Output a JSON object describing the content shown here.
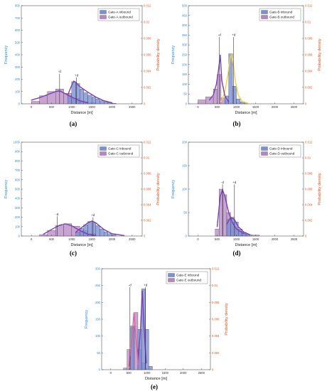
{
  "chart_data": [
    {
      "type": "bar",
      "panel_label": "(a)",
      "xlabel": "Distance [m]",
      "ylabel": "Frequency",
      "y2label": "Probability density",
      "xlim": [
        -250,
        2750
      ],
      "ylim": [
        0,
        800
      ],
      "y2lim": [
        0,
        0.012
      ],
      "xticks": [
        "0",
        "500",
        "1000",
        "1500",
        "2000",
        "2500"
      ],
      "yticks": [
        "0",
        "100",
        "200",
        "300",
        "400",
        "500",
        "600",
        "700",
        "800"
      ],
      "y2ticks": [
        "0",
        "0.002",
        "0.004",
        "0.006",
        "0.008",
        "0.01",
        "0.012"
      ],
      "legend": [
        "Gate-A inbound",
        "Gate-A outbound"
      ],
      "series": [
        {
          "name": "Gate-A inbound",
          "color": "#7b8fd6",
          "bins": [
            [
              900,
              1000,
              65
            ],
            [
              1000,
              1100,
              180
            ],
            [
              1100,
              1200,
              165
            ],
            [
              1200,
              1300,
              120
            ],
            [
              1300,
              1400,
              90
            ],
            [
              1400,
              1500,
              70
            ],
            [
              1500,
              1600,
              55
            ],
            [
              1600,
              1700,
              40
            ],
            [
              1700,
              1800,
              25
            ],
            [
              1800,
              1900,
              15
            ],
            [
              1900,
              2000,
              10
            ],
            [
              2000,
              2100,
              5
            ]
          ]
        },
        {
          "name": "Gate-A outbound",
          "color": "#b685c4",
          "bins": [
            [
              0,
              200,
              20
            ],
            [
              200,
              400,
              65
            ],
            [
              400,
              600,
              100
            ],
            [
              600,
              800,
              120
            ],
            [
              800,
              1000,
              85
            ],
            [
              1000,
              1200,
              45
            ],
            [
              1200,
              1400,
              15
            ],
            [
              1400,
              1600,
              8
            ]
          ]
        }
      ],
      "curves": [
        {
          "color": "#7a3fb5",
          "points": [
            [
              900,
              70
            ],
            [
              1000,
              150
            ],
            [
              1050,
              185
            ],
            [
              1100,
              175
            ],
            [
              1200,
              140
            ],
            [
              1400,
              95
            ],
            [
              1600,
              55
            ],
            [
              1800,
              25
            ],
            [
              2000,
              8
            ]
          ]
        },
        {
          "color": "#7a3fb5",
          "points": [
            [
              0,
              30
            ],
            [
              200,
              50
            ],
            [
              400,
              75
            ],
            [
              600,
              100
            ],
            [
              700,
              105
            ],
            [
              800,
              90
            ],
            [
              1000,
              55
            ],
            [
              1200,
              25
            ],
            [
              1400,
              8
            ]
          ]
        }
      ],
      "markers": [
        {
          "label": "-d",
          "x": 700,
          "top": 245
        },
        {
          "label": "+d",
          "x": 1120,
          "top": 215
        }
      ]
    },
    {
      "type": "bar",
      "panel_label": "(b)",
      "xlabel": "Distance [m]",
      "ylabel": "Frequency",
      "y2label": "Probability density",
      "xlim": [
        -250,
        2750
      ],
      "ylim": [
        0,
        500
      ],
      "y2lim": [
        0,
        0.012
      ],
      "xticks": [
        "0",
        "500",
        "1000",
        "1500",
        "2000",
        "2500"
      ],
      "yticks": [
        "0",
        "50",
        "100",
        "150",
        "200",
        "250",
        "300",
        "350",
        "400",
        "450",
        "500"
      ],
      "y2ticks": [
        "0",
        "0.002",
        "0.004",
        "0.006",
        "0.008",
        "0.01",
        "0.012"
      ],
      "legend": [
        "Gate-B inbound",
        "Gate-B outbound"
      ],
      "series": [
        {
          "name": "Gate-B inbound",
          "color": "#7b8fd6",
          "bins": [
            [
              700,
              800,
              40
            ],
            [
              800,
              900,
              255
            ],
            [
              900,
              1000,
              90
            ],
            [
              1000,
              1100,
              25
            ],
            [
              1100,
              1200,
              10
            ],
            [
              1200,
              1300,
              5
            ]
          ]
        },
        {
          "name": "Gate-B outbound",
          "color": "#b685c4",
          "bins": [
            [
              0,
              200,
              20
            ],
            [
              200,
              400,
              35
            ],
            [
              400,
              500,
              75
            ],
            [
              500,
              600,
              150
            ],
            [
              600,
              700,
              30
            ],
            [
              700,
              800,
              15
            ]
          ]
        }
      ],
      "curves": [
        {
          "color": "#f2d43a",
          "points": [
            [
              600,
              10
            ],
            [
              700,
              60
            ],
            [
              780,
              150
            ],
            [
              830,
              230
            ],
            [
              870,
              250
            ],
            [
              920,
              200
            ],
            [
              980,
              110
            ],
            [
              1050,
              45
            ],
            [
              1150,
              12
            ],
            [
              1300,
              3
            ]
          ]
        },
        {
          "color": "#7a3fb5",
          "points": [
            [
              300,
              20
            ],
            [
              400,
              45
            ],
            [
              480,
              100
            ],
            [
              540,
              180
            ],
            [
              580,
              250
            ],
            [
              620,
              120
            ],
            [
              700,
              40
            ],
            [
              800,
              10
            ]
          ]
        }
      ],
      "markers": [
        {
          "label": "-d",
          "x": 560,
          "top": 340
        },
        {
          "label": "+d",
          "x": 930,
          "top": 340
        }
      ]
    },
    {
      "type": "bar",
      "panel_label": "(c)",
      "xlabel": "Distance [m]",
      "ylabel": "Frequency",
      "y2label": "Probability density",
      "xlim": [
        -250,
        2750
      ],
      "ylim": [
        0,
        1000
      ],
      "y2lim": [
        0,
        0.012
      ],
      "xticks": [
        "0",
        "500",
        "1000",
        "1500",
        "2000",
        "2500"
      ],
      "yticks": [
        "0",
        "100",
        "200",
        "300",
        "400",
        "500",
        "600",
        "700",
        "800",
        "900",
        "1000"
      ],
      "y2ticks": [
        "0",
        "0.002",
        "0.004",
        "0.006",
        "0.008",
        "0.01",
        "0.012"
      ],
      "legend": [
        "Gate-C inbound",
        "Gate-C outbound"
      ],
      "series": [
        {
          "name": "Gate-C inbound",
          "color": "#7b8fd6",
          "bins": [
            [
              1100,
              1200,
              40
            ],
            [
              1200,
              1300,
              80
            ],
            [
              1300,
              1400,
              120
            ],
            [
              1400,
              1500,
              155
            ],
            [
              1500,
              1600,
              145
            ],
            [
              1600,
              1700,
              110
            ],
            [
              1700,
              1800,
              75
            ],
            [
              1800,
              1900,
              45
            ],
            [
              1900,
              2000,
              25
            ],
            [
              2000,
              2100,
              12
            ]
          ]
        },
        {
          "name": "Gate-C outbound",
          "color": "#b685c4",
          "bins": [
            [
              200,
              400,
              15
            ],
            [
              400,
              600,
              60
            ],
            [
              600,
              800,
              110
            ],
            [
              800,
              1000,
              130
            ],
            [
              1000,
              1200,
              105
            ],
            [
              1200,
              1400,
              55
            ],
            [
              1400,
              1600,
              25
            ]
          ]
        }
      ],
      "curves": [
        {
          "color": "#7a3fb5",
          "points": [
            [
              1100,
              40
            ],
            [
              1250,
              90
            ],
            [
              1400,
              140
            ],
            [
              1500,
              160
            ],
            [
              1600,
              140
            ],
            [
              1800,
              70
            ],
            [
              2000,
              25
            ],
            [
              2300,
              5
            ]
          ]
        },
        {
          "color": "#7a3fb5",
          "points": [
            [
              300,
              20
            ],
            [
              500,
              70
            ],
            [
              700,
              115
            ],
            [
              850,
              130
            ],
            [
              1000,
              110
            ],
            [
              1200,
              60
            ],
            [
              1400,
              20
            ],
            [
              1600,
              5
            ]
          ]
        }
      ],
      "markers": [
        {
          "label": "-d",
          "x": 640,
          "top": 210
        },
        {
          "label": "+d",
          "x": 1530,
          "top": 200
        }
      ]
    },
    {
      "type": "bar",
      "panel_label": "(d)",
      "xlabel": "Distance [m]",
      "ylabel": "Frequency",
      "y2label": "Probability density",
      "xlim": [
        -250,
        2750
      ],
      "ylim": [
        0,
        200
      ],
      "y2lim": [
        0,
        0.012
      ],
      "xticks": [
        "0",
        "500",
        "1000",
        "1500",
        "2000",
        "2500"
      ],
      "yticks": [
        "0",
        "50",
        "100",
        "150",
        "200"
      ],
      "y2ticks": [
        "0",
        "0.002",
        "0.004",
        "0.006",
        "0.008",
        "0.01",
        "0.012"
      ],
      "legend": [
        "Gate-D inbound",
        "Gate-D outbound"
      ],
      "series": [
        {
          "name": "Gate-D inbound",
          "color": "#7b8fd6",
          "bins": [
            [
              750,
              850,
              35
            ],
            [
              850,
              950,
              40
            ],
            [
              950,
              1050,
              30
            ],
            [
              1050,
              1150,
              15
            ],
            [
              1150,
              1250,
              8
            ],
            [
              1250,
              1350,
              4
            ]
          ]
        },
        {
          "name": "Gate-D outbound",
          "color": "#b685c4",
          "bins": [
            [
              450,
              550,
              15
            ],
            [
              550,
              650,
              100
            ],
            [
              650,
              750,
              88
            ],
            [
              750,
              850,
              50
            ],
            [
              850,
              950,
              30
            ],
            [
              950,
              1050,
              18
            ],
            [
              1050,
              1150,
              10
            ],
            [
              1150,
              1250,
              5
            ],
            [
              1250,
              1400,
              3
            ],
            [
              1400,
              1600,
              2
            ]
          ]
        }
      ],
      "curves": [
        {
          "color": "#7a3fb5",
          "points": [
            [
              500,
              20
            ],
            [
              580,
              85
            ],
            [
              640,
              98
            ],
            [
              700,
              85
            ],
            [
              800,
              50
            ],
            [
              900,
              28
            ],
            [
              1000,
              15
            ],
            [
              1200,
              5
            ]
          ]
        },
        {
          "color": "#7a3fb5",
          "points": [
            [
              750,
              25
            ],
            [
              850,
              40
            ],
            [
              950,
              35
            ],
            [
              1050,
              20
            ],
            [
              1200,
              8
            ],
            [
              1350,
              3
            ]
          ]
        }
      ],
      "markers": [
        {
          "label": "-d",
          "x": 640,
          "top": 110
        },
        {
          "label": "+d",
          "x": 950,
          "top": 110
        }
      ]
    },
    {
      "type": "bar",
      "panel_label": "(e)",
      "xlabel": "Distance [m]",
      "ylabel": "Frequency",
      "y2label": "Probability density",
      "xlim": [
        -250,
        2750
      ],
      "ylim": [
        0,
        300
      ],
      "y2lim": [
        0,
        0.012
      ],
      "xticks": [
        "0",
        "500",
        "1000",
        "1500",
        "2000",
        "2500"
      ],
      "yticks": [
        "0",
        "50",
        "100",
        "150",
        "200",
        "250",
        "300"
      ],
      "y2ticks": [
        "0",
        "0.002",
        "0.004",
        "0.006",
        "0.008",
        "0.01",
        "0.012"
      ],
      "legend": [
        "Gate-E inbound",
        "Gate-E outbound"
      ],
      "series": [
        {
          "name": "Gate-E inbound",
          "color": "#7b8fd6",
          "bins": [
            [
              550,
              650,
              130
            ],
            [
              750,
              850,
              120
            ],
            [
              850,
              950,
              240
            ],
            [
              950,
              1050,
              120
            ],
            [
              1050,
              1150,
              10
            ]
          ]
        },
        {
          "name": "Gate-E outbound",
          "color": "#b685c4",
          "bins": [
            [
              350,
              450,
              5
            ],
            [
              450,
              550,
              60
            ],
            [
              550,
              650,
              125
            ],
            [
              650,
              750,
              170
            ],
            [
              750,
              850,
              60
            ],
            [
              850,
              950,
              20
            ]
          ]
        }
      ],
      "curves": [
        {
          "color": "#7a3fb5",
          "points": [
            [
              750,
              20
            ],
            [
              820,
              120
            ],
            [
              870,
              235
            ],
            [
              920,
              120
            ],
            [
              980,
              20
            ]
          ]
        },
        {
          "color": "#e0609a",
          "points": [
            [
              500,
              10
            ],
            [
              580,
              80
            ],
            [
              640,
              170
            ],
            [
              700,
              90
            ],
            [
              760,
              15
            ]
          ]
        }
      ],
      "markers": [
        {
          "label": "-d",
          "x": 530,
          "top": 245
        },
        {
          "label": "+d",
          "x": 960,
          "top": 245
        }
      ]
    }
  ]
}
